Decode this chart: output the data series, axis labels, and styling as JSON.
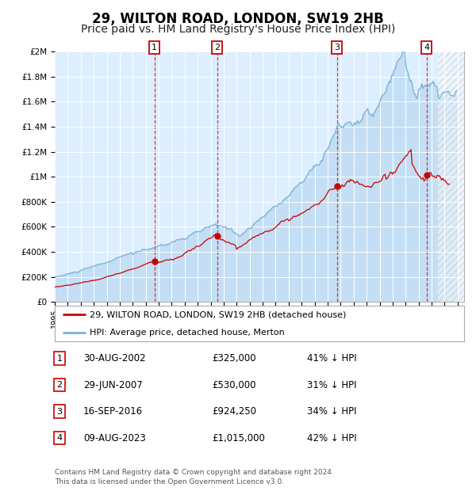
{
  "title": "29, WILTON ROAD, LONDON, SW19 2HB",
  "subtitle": "Price paid vs. HM Land Registry's House Price Index (HPI)",
  "title_fontsize": 12,
  "subtitle_fontsize": 10,
  "ylim": [
    0,
    2000000
  ],
  "xlim_start": 1995.0,
  "xlim_end": 2026.5,
  "hpi_color": "#7ab3d8",
  "price_color": "#cc0000",
  "background_plot": "#ddeeff",
  "background_fig": "#ffffff",
  "legend_label_price": "29, WILTON ROAD, LONDON, SW19 2HB (detached house)",
  "legend_label_hpi": "HPI: Average price, detached house, Merton",
  "transactions": [
    {
      "num": 1,
      "date": "30-AUG-2002",
      "price": 325000,
      "pct": "41% ↓ HPI",
      "year": 2002.67
    },
    {
      "num": 2,
      "date": "29-JUN-2007",
      "price": 530000,
      "pct": "31% ↓ HPI",
      "year": 2007.5
    },
    {
      "num": 3,
      "date": "16-SEP-2016",
      "price": 924250,
      "pct": "34% ↓ HPI",
      "year": 2016.71
    },
    {
      "num": 4,
      "date": "09-AUG-2023",
      "price": 1015000,
      "pct": "42% ↓ HPI",
      "year": 2023.61
    }
  ],
  "footer": "Contains HM Land Registry data © Crown copyright and database right 2024.\nThis data is licensed under the Open Government Licence v3.0.",
  "yticks": [
    0,
    200000,
    400000,
    600000,
    800000,
    1000000,
    1200000,
    1400000,
    1600000,
    1800000,
    2000000
  ],
  "ytick_labels": [
    "£0",
    "£200K",
    "£400K",
    "£600K",
    "£800K",
    "£1M",
    "£1.2M",
    "£1.4M",
    "£1.6M",
    "£1.8M",
    "£2M"
  ],
  "xticks": [
    1995,
    1996,
    1997,
    1998,
    1999,
    2000,
    2001,
    2002,
    2003,
    2004,
    2005,
    2006,
    2007,
    2008,
    2009,
    2010,
    2011,
    2012,
    2013,
    2014,
    2015,
    2016,
    2017,
    2018,
    2019,
    2020,
    2021,
    2022,
    2023,
    2024,
    2025,
    2026
  ],
  "hatch_start": 2024.5
}
